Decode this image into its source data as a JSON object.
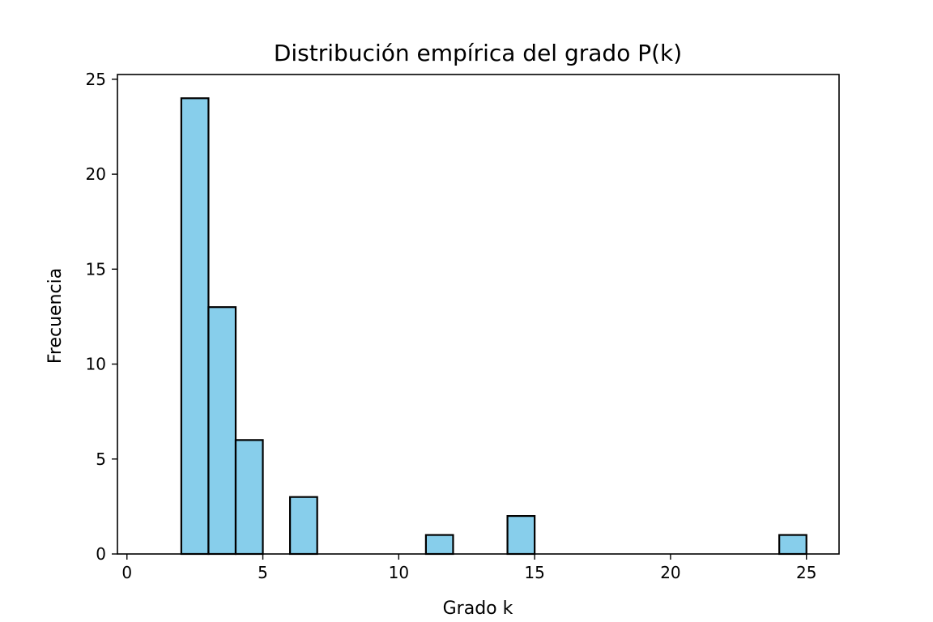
{
  "chart_data": {
    "type": "bar",
    "title": "Distribución empírica del grado P(k)",
    "xlabel": "Grado k",
    "ylabel": "Frecuencia",
    "xlim": [
      -0.35,
      26.2
    ],
    "ylim": [
      0,
      25.25
    ],
    "xticks": [
      0,
      5,
      10,
      15,
      20,
      25
    ],
    "yticks": [
      0,
      5,
      10,
      15,
      20,
      25
    ],
    "bin_width": 1,
    "bins": [
      {
        "x": 2,
        "value": 24
      },
      {
        "x": 3,
        "value": 13
      },
      {
        "x": 4,
        "value": 6
      },
      {
        "x": 6,
        "value": 3
      },
      {
        "x": 11,
        "value": 1
      },
      {
        "x": 14,
        "value": 2
      },
      {
        "x": 24,
        "value": 1
      }
    ],
    "grid": false,
    "legend": "none",
    "bar_color": "#87CEEB",
    "edge_color": "#000000"
  }
}
